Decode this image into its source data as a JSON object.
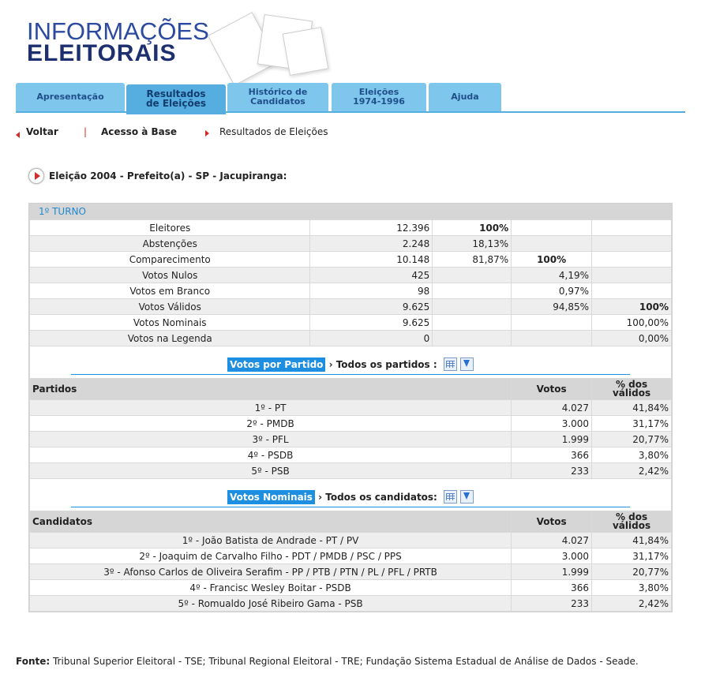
{
  "logo": {
    "line1": "INFORMAÇÕES",
    "line2": "ELEITORAIS"
  },
  "tabs": [
    {
      "l1": "Apresentação",
      "l2": ""
    },
    {
      "l1": "Resultados",
      "l2": "de Eleições"
    },
    {
      "l1": "Histórico de",
      "l2": "Candidatos"
    },
    {
      "l1": "Eleições",
      "l2": "1974-1996"
    },
    {
      "l1": "Ajuda",
      "l2": ""
    }
  ],
  "crumbs": {
    "back": "Voltar",
    "sep": "|",
    "base": "Acesso à Base",
    "current": "Resultados de Eleições"
  },
  "title": "Eleição 2004 - Prefeito(a) - SP - Jacupiranga:",
  "turno": "1º TURNO",
  "summary": [
    {
      "label": "Eleitores",
      "value": "12.396",
      "c1": "100%",
      "c2": "",
      "c3": ""
    },
    {
      "label": "Abstenções",
      "value": "2.248",
      "c1": "18,13%",
      "c2": "",
      "c3": ""
    },
    {
      "label": "Comparecimento",
      "value": "10.148",
      "c1": "81,87%",
      "c2": "100%",
      "c3": ""
    },
    {
      "label": "Votos Nulos",
      "value": "425",
      "c1": "",
      "c2": "4,19%",
      "c3": ""
    },
    {
      "label": "Votos em Branco",
      "value": "98",
      "c1": "",
      "c2": "0,97%",
      "c3": ""
    },
    {
      "label": "Votos Válidos",
      "value": "9.625",
      "c1": "",
      "c2": "94,85%",
      "c3": "100%"
    },
    {
      "label": "Votos Nominais",
      "value": "9.625",
      "c1": "",
      "c2": "",
      "c3": "100,00%"
    },
    {
      "label": "Votos na Legenda",
      "value": "0",
      "c1": "",
      "c2": "",
      "c3": "0,00%"
    }
  ],
  "partidos_section": {
    "badge": "Votos por Partido",
    "text": " › Todos os partidos : "
  },
  "partidos_header": {
    "name": "Partidos",
    "votes": "Votos",
    "pct1": "% dos",
    "pct2": "válidos"
  },
  "partidos": [
    {
      "name": "1º - PT",
      "votes": "4.027",
      "pct": "41,84%"
    },
    {
      "name": "2º - PMDB",
      "votes": "3.000",
      "pct": "31,17%"
    },
    {
      "name": "3º - PFL",
      "votes": "1.999",
      "pct": "20,77%"
    },
    {
      "name": "4º - PSDB",
      "votes": "366",
      "pct": "3,80%"
    },
    {
      "name": "5º - PSB",
      "votes": "233",
      "pct": "2,42%"
    }
  ],
  "nominais_section": {
    "badge": "Votos Nominais",
    "text": " › Todos os candidatos: "
  },
  "candidatos_header": {
    "name": "Candidatos",
    "votes": "Votos",
    "pct1": "% dos",
    "pct2": "válidos"
  },
  "candidatos": [
    {
      "name": "1º - João Batista de Andrade - PT / PV",
      "votes": "4.027",
      "pct": "41,84%"
    },
    {
      "name": "2º - Joaquim de Carvalho Filho - PDT / PMDB / PSC / PPS",
      "votes": "3.000",
      "pct": "31,17%"
    },
    {
      "name": "3º - Afonso Carlos de Oliveira Serafim - PP / PTB / PTN / PL / PFL / PRTB",
      "votes": "1.999",
      "pct": "20,77%"
    },
    {
      "name": "4º - Francisc Wesley Boitar - PSDB",
      "votes": "366",
      "pct": "3,80%"
    },
    {
      "name": "5º - Romualdo José Ribeiro Gama - PSB",
      "votes": "233",
      "pct": "2,42%"
    }
  ],
  "fonte": {
    "label": "Fonte:",
    "text": " Tribunal Superior Eleitoral - TSE; Tribunal Regional Eleitoral - TRE; Fundação Sistema Estadual de Análise de Dados - Seade."
  }
}
